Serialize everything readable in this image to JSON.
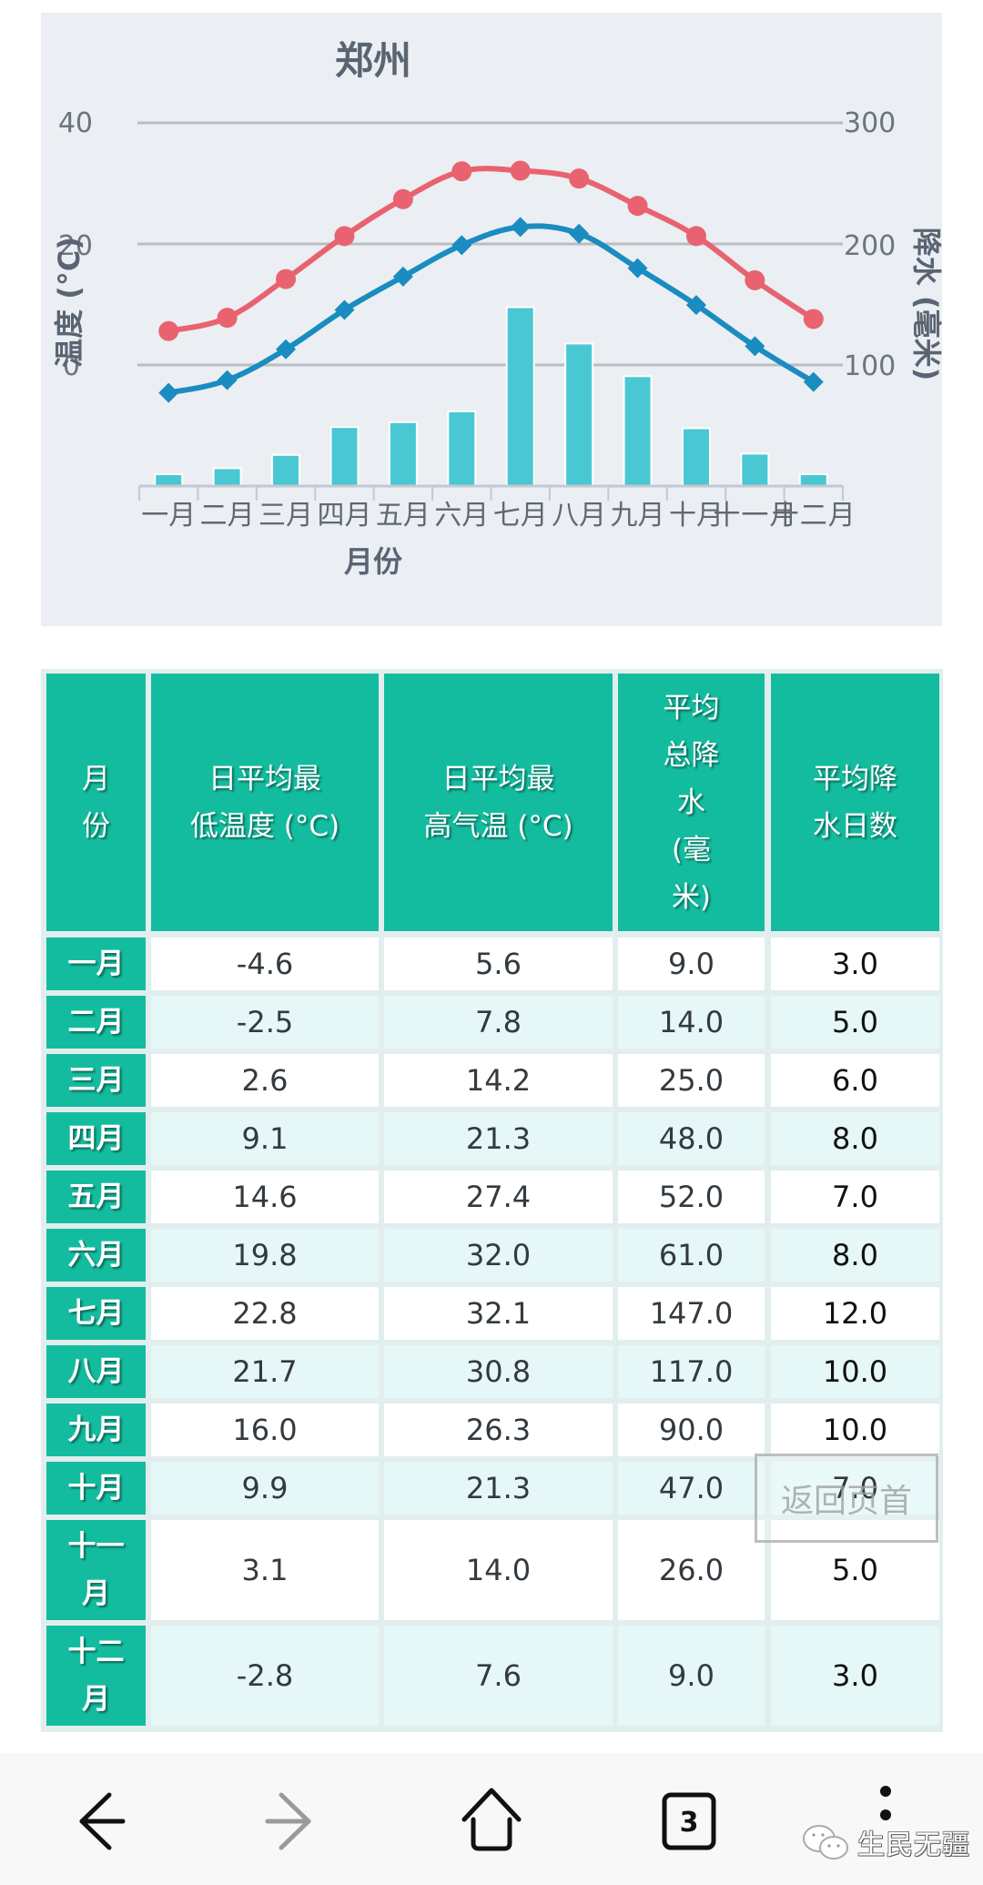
{
  "chart_data": {
    "type": "bar+line",
    "title": "郑州",
    "xlabel": "月份",
    "ylabel_left": "温度 (°C)",
    "ylabel_right": "降水 (毫米)",
    "categories": [
      "一月",
      "二月",
      "三月",
      "四月",
      "五月",
      "六月",
      "七月",
      "八月",
      "九月",
      "十月",
      "十一月",
      "十二月"
    ],
    "y_left": {
      "range": [
        -20,
        40
      ],
      "ticks": [
        0,
        20,
        40
      ],
      "tick_labels": [
        "0",
        "20",
        "40"
      ]
    },
    "y_right": {
      "range": [
        0,
        300
      ],
      "ticks": [
        100,
        200,
        300
      ],
      "tick_labels": [
        "100",
        "200",
        "300"
      ]
    },
    "grid": true,
    "series": [
      {
        "name": "日平均最高气温 (°C)",
        "type": "line",
        "axis": "left",
        "marker": "circle",
        "color": "#e8636f",
        "values": [
          5.6,
          7.8,
          14.2,
          21.3,
          27.4,
          32.0,
          32.1,
          30.8,
          26.3,
          21.3,
          14.0,
          7.6
        ]
      },
      {
        "name": "日平均最低温度 (°C)",
        "type": "line",
        "axis": "left",
        "marker": "diamond",
        "color": "#1a8cc0",
        "values": [
          -4.6,
          -2.5,
          2.6,
          9.1,
          14.6,
          19.8,
          22.8,
          21.7,
          16.0,
          9.9,
          3.1,
          -2.8
        ]
      },
      {
        "name": "平均总降水 (毫米)",
        "type": "bar",
        "axis": "right",
        "color": "#49c8d3",
        "values": [
          9.0,
          14.0,
          25.0,
          48.0,
          52.0,
          61.0,
          147.0,
          117.0,
          90.0,
          47.0,
          26.0,
          9.0
        ]
      }
    ]
  },
  "chart": {
    "title": "郑州",
    "xlabel": "月份",
    "ylabel_left": "温度 (°C)",
    "ylabel_right": "降水 (毫米)",
    "left_ticks": [
      "40",
      "20",
      "0"
    ],
    "right_ticks": [
      "300",
      "200",
      "100"
    ]
  },
  "table": {
    "headers": [
      "月份",
      "日平均最低温度 (°C)",
      "日平均最高气温 (°C)",
      "平均总降水 (毫米)",
      "平均降水日数"
    ],
    "header_lines": [
      [
        "月",
        "份"
      ],
      [
        "日平均最",
        "低温度 (°C)"
      ],
      [
        "日平均最",
        "高气温 (°C)"
      ],
      [
        "平均",
        "总降",
        "水",
        "(毫",
        "米)"
      ],
      [
        "平均降",
        "水日数"
      ]
    ],
    "rows": [
      {
        "month": "一月",
        "month_lines": [
          "一月"
        ],
        "low": "-4.6",
        "high": "5.6",
        "precip": "9.0",
        "days": "3.0"
      },
      {
        "month": "二月",
        "month_lines": [
          "二月"
        ],
        "low": "-2.5",
        "high": "7.8",
        "precip": "14.0",
        "days": "5.0"
      },
      {
        "month": "三月",
        "month_lines": [
          "三月"
        ],
        "low": "2.6",
        "high": "14.2",
        "precip": "25.0",
        "days": "6.0"
      },
      {
        "month": "四月",
        "month_lines": [
          "四月"
        ],
        "low": "9.1",
        "high": "21.3",
        "precip": "48.0",
        "days": "8.0"
      },
      {
        "month": "五月",
        "month_lines": [
          "五月"
        ],
        "low": "14.6",
        "high": "27.4",
        "precip": "52.0",
        "days": "7.0"
      },
      {
        "month": "六月",
        "month_lines": [
          "六月"
        ],
        "low": "19.8",
        "high": "32.0",
        "precip": "61.0",
        "days": "8.0"
      },
      {
        "month": "七月",
        "month_lines": [
          "七月"
        ],
        "low": "22.8",
        "high": "32.1",
        "precip": "147.0",
        "days": "12.0"
      },
      {
        "month": "八月",
        "month_lines": [
          "八月"
        ],
        "low": "21.7",
        "high": "30.8",
        "precip": "117.0",
        "days": "10.0"
      },
      {
        "month": "九月",
        "month_lines": [
          "九月"
        ],
        "low": "16.0",
        "high": "26.3",
        "precip": "90.0",
        "days": "10.0"
      },
      {
        "month": "十月",
        "month_lines": [
          "十月"
        ],
        "low": "9.9",
        "high": "21.3",
        "precip": "47.0",
        "days": "7.0"
      },
      {
        "month": "十一月",
        "month_lines": [
          "十一",
          "月"
        ],
        "low": "3.1",
        "high": "14.0",
        "precip": "26.0",
        "days": "5.0"
      },
      {
        "month": "十二月",
        "month_lines": [
          "十二",
          "月"
        ],
        "low": "-2.8",
        "high": "7.6",
        "precip": "9.0",
        "days": "3.0"
      }
    ]
  },
  "back_to_top": {
    "label": "返回页首"
  },
  "nav": {
    "back": "back-arrow-icon",
    "forward": "forward-arrow-icon",
    "home": "home-icon",
    "tabs_count": "3",
    "menu": "more-vertical-icon"
  },
  "watermark": {
    "text": "生民无疆",
    "icon": "wechat-icon"
  },
  "colors": {
    "panel_bg": "#ebeff3",
    "header_bg": "#14bc9f",
    "row_alt_bg": "#e5f7f7",
    "high_line": "#e8636f",
    "low_line": "#1a8cc0",
    "bars": "#49c8d3"
  }
}
